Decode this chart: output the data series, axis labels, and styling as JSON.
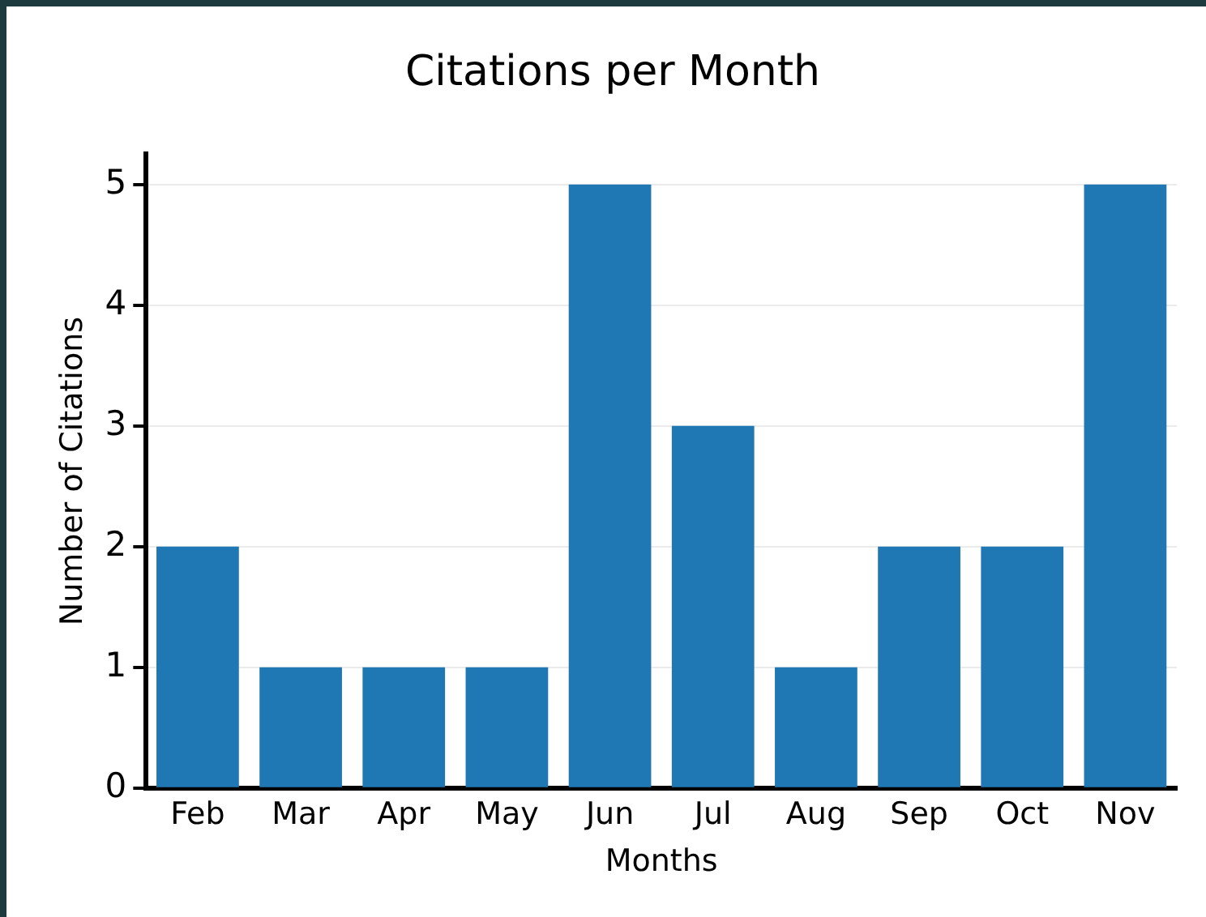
{
  "chart_data": {
    "type": "bar",
    "title": "Citations per Month",
    "xlabel": "Months",
    "ylabel": "Number of Citations",
    "categories": [
      "Feb",
      "Mar",
      "Apr",
      "May",
      "Jun",
      "Jul",
      "Aug",
      "Sep",
      "Oct",
      "Nov"
    ],
    "values": [
      2,
      1,
      1,
      1,
      5,
      3,
      1,
      2,
      2,
      5
    ],
    "color": "#1f77b4",
    "ylim": [
      0,
      5.25
    ],
    "yticks": [
      0,
      1,
      2,
      3,
      4,
      5
    ],
    "grid": "y",
    "legend": false
  }
}
